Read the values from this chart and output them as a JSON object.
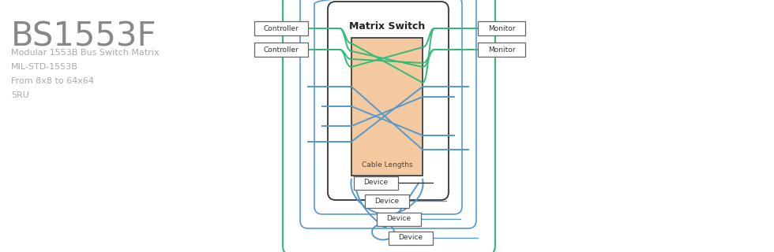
{
  "title": "BS1553F",
  "subtitle_lines": [
    "Modular 1553B Bus Switch Matrix",
    "MIL-STD-1553B",
    "From 8x8 to 64x64",
    "5RU"
  ],
  "title_color": "#888888",
  "subtitle_color": "#aaaaaa",
  "matrix_label": "Matrix Switch",
  "matrix_fill": "#f5c9a0",
  "cable_label": "Cable Lengths",
  "green_color": "#33bb77",
  "blue_color": "#5599cc",
  "black_color": "#333333",
  "bg_color": "#ffffff"
}
